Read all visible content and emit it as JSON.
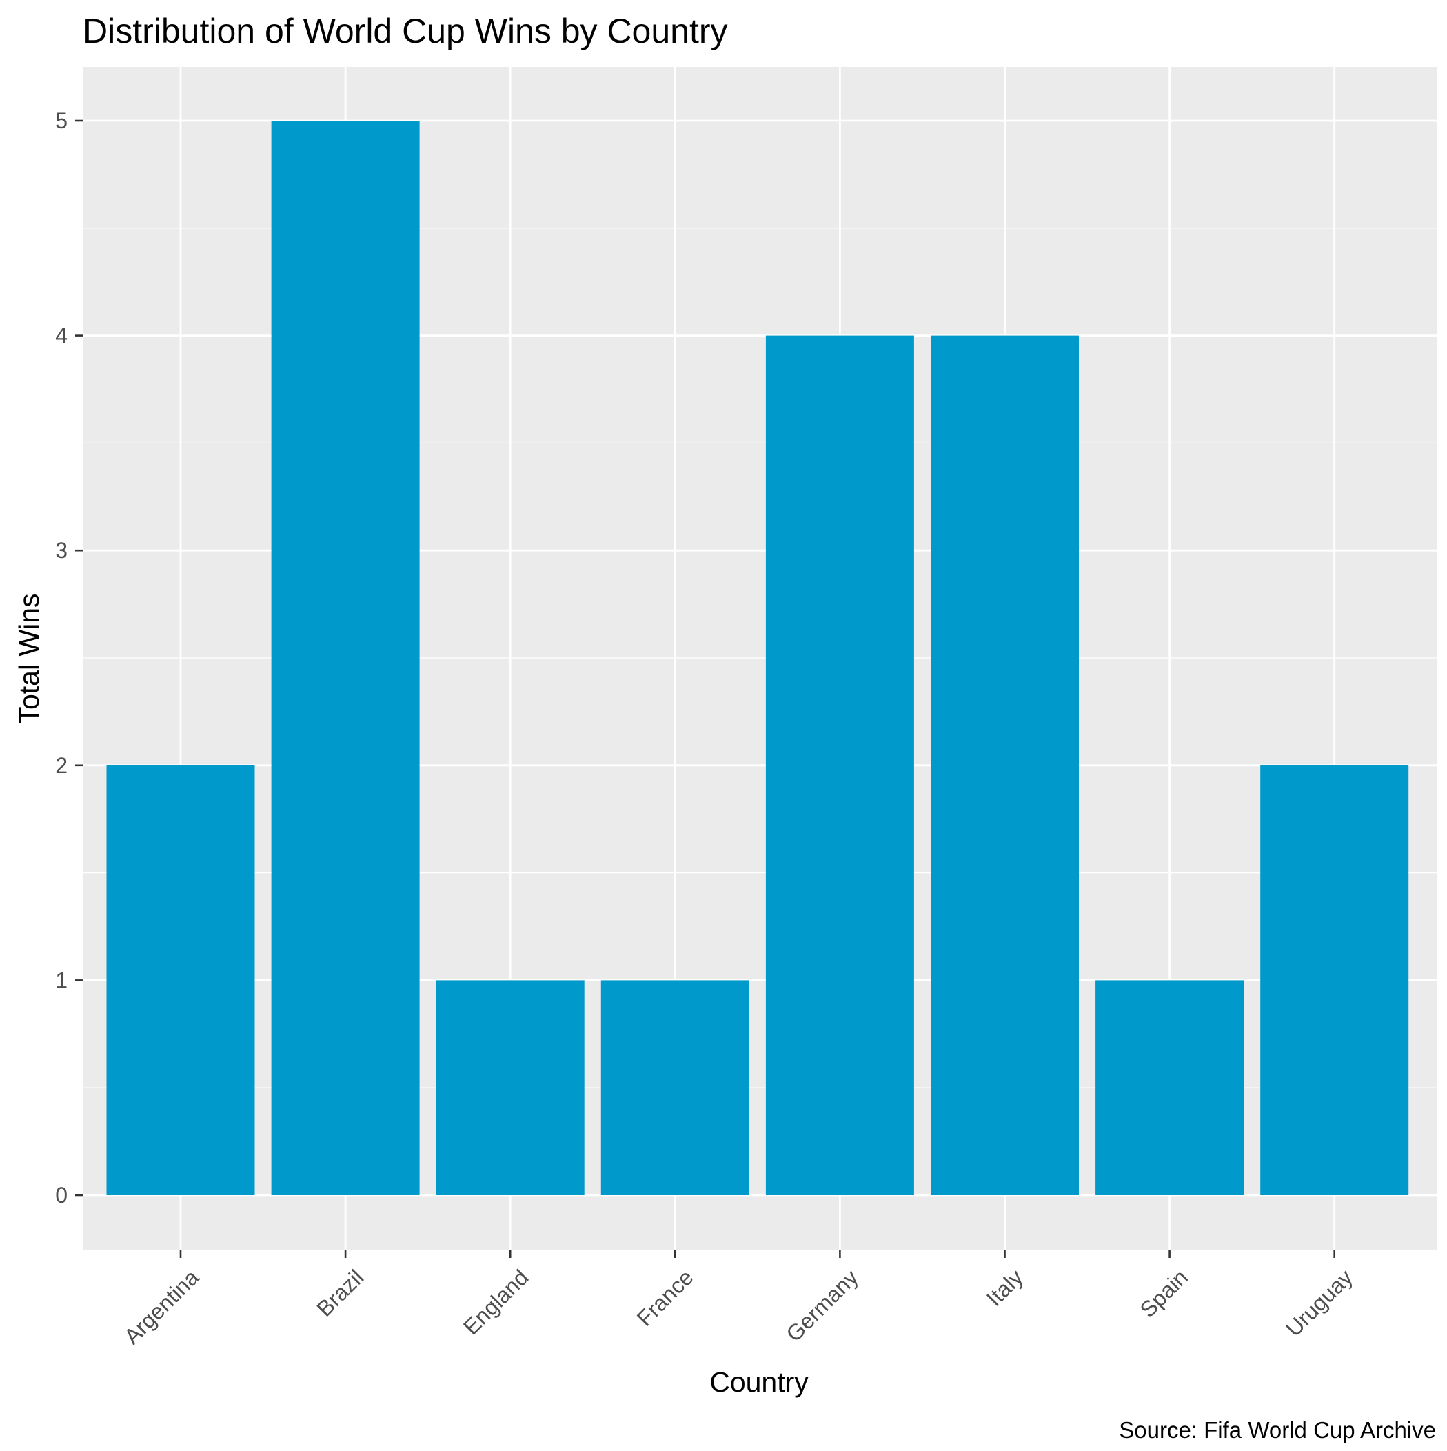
{
  "chart_data": {
    "type": "bar",
    "title": "Distribution of World Cup Wins by Country",
    "xlabel": "Country",
    "ylabel": "Total Wins",
    "caption": "Source: Fifa World Cup Archive",
    "categories": [
      "Argentina",
      "Brazil",
      "England",
      "France",
      "Germany",
      "Italy",
      "Spain",
      "Uruguay"
    ],
    "values": [
      2,
      5,
      1,
      1,
      4,
      4,
      1,
      2
    ],
    "ylim": [
      0,
      5
    ],
    "yticks": [
      0,
      1,
      2,
      3,
      4,
      5
    ],
    "grid": true,
    "legend": "none",
    "x_tick_rotation": "45 degrees",
    "colors": {
      "bar": "#0099cc",
      "panel_background": "#ebebeb",
      "grid": "#ffffff",
      "tick_text": "#4d4d4d",
      "text": "#000000"
    }
  }
}
